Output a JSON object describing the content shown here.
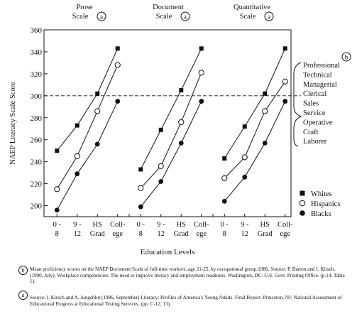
{
  "chart_data": {
    "type": "line",
    "ylabel": "NAEP Literacy Scale Score",
    "xlabel": "Education Levels",
    "ylim": [
      190,
      360
    ],
    "yticks": [
      200,
      220,
      240,
      260,
      280,
      300,
      320,
      340,
      360
    ],
    "categories": [
      [
        "0 -",
        "8"
      ],
      [
        "9 -",
        "12"
      ],
      [
        "HS",
        "Grad"
      ],
      [
        "Coll-",
        "ege"
      ]
    ],
    "reference_line": 300,
    "panels": [
      {
        "title_lines": [
          "Prose",
          "Scale"
        ],
        "marker_letter": "a",
        "series": [
          {
            "name": "Whites",
            "marker": "square",
            "values": [
              250,
              273,
              302,
              343
            ]
          },
          {
            "name": "Hispanics",
            "marker": "open-circle",
            "values": [
              215,
              245,
              286,
              328
            ]
          },
          {
            "name": "Blacks",
            "marker": "filled-circle",
            "values": [
              196,
              229,
              256,
              295
            ]
          }
        ]
      },
      {
        "title_lines": [
          "Document",
          "Scale"
        ],
        "marker_letter": "a",
        "series": [
          {
            "name": "Whites",
            "marker": "square",
            "values": [
              233,
              269,
              305,
              343
            ]
          },
          {
            "name": "Hispanics",
            "marker": "open-circle",
            "values": [
              216,
              236,
              276,
              321
            ]
          },
          {
            "name": "Blacks",
            "marker": "filled-circle",
            "values": [
              199,
              222,
              257,
              295
            ]
          }
        ]
      },
      {
        "title_lines": [
          "Quantitative",
          "Scale"
        ],
        "marker_letter": "a",
        "series": [
          {
            "name": "Whites",
            "marker": "square",
            "values": [
              243,
              272,
              302,
              343
            ]
          },
          {
            "name": "Hispanics",
            "marker": "open-circle",
            "values": [
              225,
              244,
              286,
              313
            ]
          },
          {
            "name": "Blacks",
            "marker": "filled-circle",
            "values": [
              204,
              226,
              257,
              295
            ]
          }
        ]
      }
    ],
    "occupations": {
      "marker_letter": "b",
      "labels": [
        "Professional",
        "Technical",
        "Managerial",
        "Clerical",
        "Sales",
        "Service",
        "Operative",
        "Craft",
        "Laborer"
      ]
    },
    "legend": {
      "position": "bottom-right",
      "entries": [
        {
          "label": "Whites",
          "marker": "square"
        },
        {
          "label": "Hispanics",
          "marker": "open-circle"
        },
        {
          "label": "Blacks",
          "marker": "filled-circle"
        }
      ]
    }
  },
  "notes": {
    "b": {
      "letter": "b",
      "text": "Mean proficiency scores on the NAEP Document Scale of full-time workers, age 21-25, by occupational group:1986.  Source:  P. Barton and I. Kirsch.  (1990, July).  Workplace competencies:  The need to improve literacy and employment readiness.  Washington, DC:  U.S. Govt. Printing Office. (p.14, Table 1)."
    },
    "a": {
      "letter": "a",
      "text": "Source:  I. Kirsch and A. Jungeblut (1986, September) Literacy: Profiles of America's Young Adults. Final Report. Princeton, NJ: National Assessment of Educational Progress at Educational Testing Services.  (pp. C-12, 13)."
    }
  }
}
